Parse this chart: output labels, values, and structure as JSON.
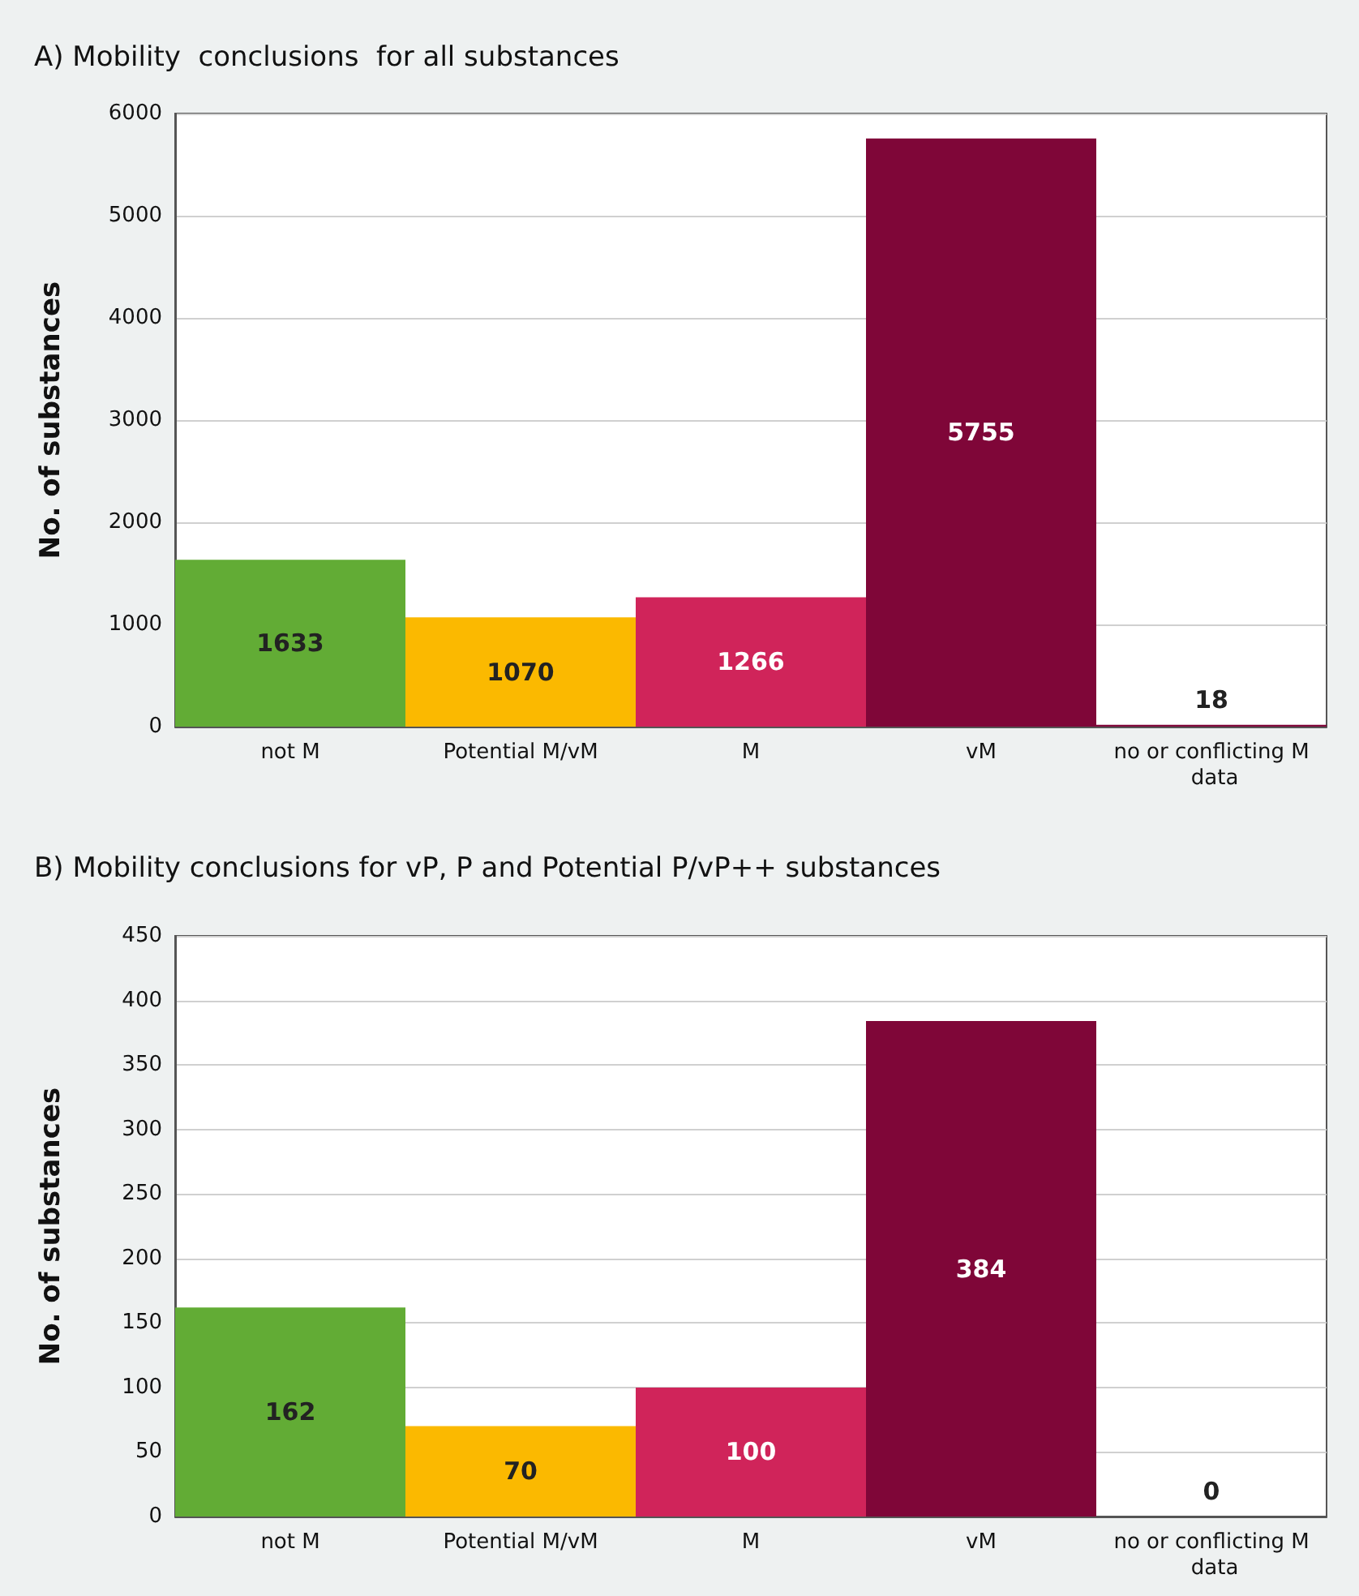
{
  "chart_data": [
    {
      "type": "bar",
      "title": "A) Mobility  conclusions  for all substances",
      "ylabel": "No. of substances",
      "categories": [
        "not M",
        "Potential M/vM",
        "M",
        "vM",
        "no or conflicting M data"
      ],
      "values": [
        1633,
        1070,
        1266,
        5755,
        18
      ],
      "colors": [
        "#62ac35",
        "#fbb900",
        "#d0245a",
        "#7f0638",
        "#7f0638"
      ],
      "ylim": [
        0,
        6000
      ],
      "yticks": [
        0,
        1000,
        2000,
        3000,
        4000,
        5000,
        6000
      ],
      "grid": "y",
      "data_labels": true
    },
    {
      "type": "bar",
      "title": "B) Mobility conclusions for vP, P and Potential P/vP++ substances",
      "ylabel": "No. of substances",
      "categories": [
        "not M",
        "Potential M/vM",
        "M",
        "vM",
        "no or conflicting M data"
      ],
      "values": [
        162,
        70,
        100,
        384,
        0
      ],
      "colors": [
        "#62ac35",
        "#fbb900",
        "#d0245a",
        "#7f0638",
        "#7f0638"
      ],
      "ylim": [
        0,
        450
      ],
      "yticks": [
        0,
        50,
        100,
        150,
        200,
        250,
        300,
        350,
        400,
        450
      ],
      "grid": "y",
      "data_labels": true
    }
  ]
}
